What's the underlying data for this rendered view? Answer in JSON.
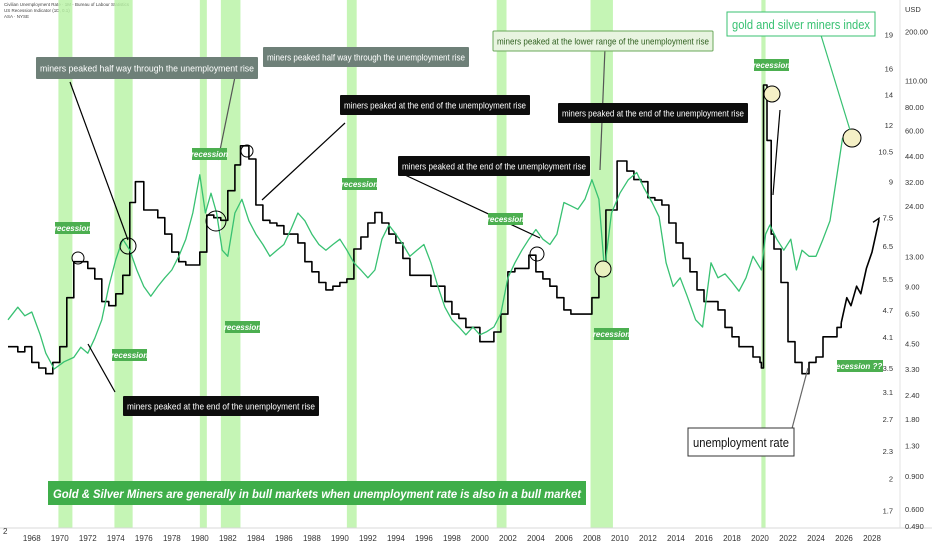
{
  "header": {
    "line1": "Civilian Unemployment Rate · 1M · Bureau of Labour Statistics",
    "line2": "US Recession Indicator (1D, 0.1)",
    "line3": "ASA · NYSE"
  },
  "chart_data": {
    "type": "line",
    "title": "",
    "xlabel": "",
    "ylabel": "",
    "x_ticks": [
      "1968",
      "1970",
      "1972",
      "1974",
      "1976",
      "1978",
      "1980",
      "1982",
      "1984",
      "1986",
      "1988",
      "1990",
      "1992",
      "1994",
      "1996",
      "1998",
      "2000",
      "2002",
      "2004",
      "2006",
      "2008",
      "2010",
      "2012",
      "2014",
      "2016",
      "2018",
      "2020",
      "2022",
      "2024",
      "2026",
      "2028"
    ],
    "xlim": [
      1966.3,
      2029.5
    ],
    "left_axis_label": "2",
    "right_axis": {
      "unemployment_ticks": [
        "19",
        "16",
        "14",
        "12",
        "10.5",
        "9",
        "7.5",
        "6.5",
        "5.5",
        "4.7",
        "4.1",
        "3.5",
        "3.1",
        "2.7",
        "2.3",
        "2",
        "1.7"
      ],
      "miners_ticks": [
        "USD",
        "200.00",
        "110.00",
        "80.00",
        "60.00",
        "44.00",
        "32.00",
        "24.00",
        "13.00",
        "9.00",
        "6.50",
        "4.50",
        "3.30",
        "2.40",
        "1.80",
        "1.30",
        "0.900",
        "0.600",
        "0.490"
      ]
    },
    "recessions": [
      [
        1969.9,
        1970.9
      ],
      [
        1973.9,
        1975.2
      ],
      [
        1980.0,
        1980.5
      ],
      [
        1981.5,
        1982.9
      ],
      [
        1990.5,
        1991.2
      ],
      [
        2001.2,
        2001.9
      ],
      [
        2007.9,
        2009.5
      ],
      [
        2020.1,
        2020.4
      ]
    ],
    "series": [
      {
        "name": "unemployment rate",
        "color": "#000000",
        "points": [
          [
            1966.3,
            3.9
          ],
          [
            1967.0,
            3.8
          ],
          [
            1967.5,
            3.9
          ],
          [
            1968.0,
            3.6
          ],
          [
            1968.5,
            3.5
          ],
          [
            1969.0,
            3.4
          ],
          [
            1969.5,
            3.6
          ],
          [
            1970.0,
            3.9
          ],
          [
            1970.5,
            5.0
          ],
          [
            1971.0,
            6.0
          ],
          [
            1971.5,
            6.0
          ],
          [
            1972.0,
            5.8
          ],
          [
            1972.5,
            5.5
          ],
          [
            1973.0,
            4.9
          ],
          [
            1973.5,
            4.8
          ],
          [
            1974.0,
            5.1
          ],
          [
            1974.5,
            5.6
          ],
          [
            1975.0,
            8.1
          ],
          [
            1975.4,
            9.0
          ],
          [
            1976.0,
            7.8
          ],
          [
            1976.5,
            7.8
          ],
          [
            1977.0,
            7.5
          ],
          [
            1977.5,
            6.9
          ],
          [
            1978.0,
            6.3
          ],
          [
            1978.5,
            6.0
          ],
          [
            1979.0,
            5.9
          ],
          [
            1979.5,
            5.9
          ],
          [
            1980.0,
            6.3
          ],
          [
            1980.5,
            7.6
          ],
          [
            1981.0,
            7.5
          ],
          [
            1981.5,
            7.4
          ],
          [
            1982.0,
            8.6
          ],
          [
            1982.5,
            9.8
          ],
          [
            1982.9,
            10.8
          ],
          [
            1983.5,
            10.1
          ],
          [
            1984.0,
            8.0
          ],
          [
            1984.5,
            7.4
          ],
          [
            1985.0,
            7.3
          ],
          [
            1985.5,
            7.2
          ],
          [
            1986.0,
            6.9
          ],
          [
            1986.5,
            6.9
          ],
          [
            1987.0,
            6.6
          ],
          [
            1987.5,
            6.0
          ],
          [
            1988.0,
            5.7
          ],
          [
            1988.5,
            5.4
          ],
          [
            1989.0,
            5.2
          ],
          [
            1989.5,
            5.3
          ],
          [
            1990.0,
            5.4
          ],
          [
            1990.5,
            5.5
          ],
          [
            1991.0,
            6.4
          ],
          [
            1991.5,
            6.8
          ],
          [
            1992.0,
            7.3
          ],
          [
            1992.5,
            7.7
          ],
          [
            1993.0,
            7.3
          ],
          [
            1993.5,
            6.9
          ],
          [
            1994.0,
            6.6
          ],
          [
            1994.5,
            6.1
          ],
          [
            1995.0,
            5.6
          ],
          [
            1995.5,
            5.6
          ],
          [
            1996.0,
            5.6
          ],
          [
            1996.5,
            5.3
          ],
          [
            1997.0,
            5.3
          ],
          [
            1997.5,
            4.9
          ],
          [
            1998.0,
            4.6
          ],
          [
            1998.5,
            4.5
          ],
          [
            1999.0,
            4.3
          ],
          [
            1999.5,
            4.3
          ],
          [
            2000.0,
            4.0
          ],
          [
            2000.5,
            4.0
          ],
          [
            2001.0,
            4.2
          ],
          [
            2001.5,
            4.6
          ],
          [
            2002.0,
            5.7
          ],
          [
            2002.5,
            5.8
          ],
          [
            2003.0,
            5.8
          ],
          [
            2003.5,
            6.2
          ],
          [
            2004.0,
            5.7
          ],
          [
            2004.5,
            5.5
          ],
          [
            2005.0,
            5.3
          ],
          [
            2005.5,
            5.0
          ],
          [
            2006.0,
            4.7
          ],
          [
            2006.5,
            4.6
          ],
          [
            2007.0,
            4.6
          ],
          [
            2007.5,
            4.6
          ],
          [
            2008.0,
            5.0
          ],
          [
            2008.5,
            5.8
          ],
          [
            2009.0,
            7.8
          ],
          [
            2009.8,
            10.0
          ],
          [
            2010.5,
            9.5
          ],
          [
            2011.0,
            9.1
          ],
          [
            2011.5,
            9.0
          ],
          [
            2012.0,
            8.3
          ],
          [
            2012.5,
            8.2
          ],
          [
            2013.0,
            8.0
          ],
          [
            2013.5,
            7.3
          ],
          [
            2014.0,
            6.6
          ],
          [
            2014.5,
            6.1
          ],
          [
            2015.0,
            5.7
          ],
          [
            2015.5,
            5.2
          ],
          [
            2016.0,
            4.9
          ],
          [
            2016.5,
            4.9
          ],
          [
            2017.0,
            4.7
          ],
          [
            2017.5,
            4.3
          ],
          [
            2018.0,
            4.1
          ],
          [
            2018.5,
            3.9
          ],
          [
            2019.0,
            3.9
          ],
          [
            2019.5,
            3.7
          ],
          [
            2020.0,
            3.6
          ],
          [
            2020.1,
            3.5
          ],
          [
            2020.25,
            14.7
          ],
          [
            2020.5,
            11.1
          ],
          [
            2020.8,
            6.9
          ],
          [
            2021.0,
            6.4
          ],
          [
            2021.5,
            5.4
          ],
          [
            2022.0,
            4.0
          ],
          [
            2022.5,
            3.6
          ],
          [
            2023.0,
            3.4
          ],
          [
            2023.5,
            3.6
          ],
          [
            2024.0,
            3.7
          ],
          [
            2024.5,
            4.1
          ],
          [
            2025.0,
            4.1
          ],
          [
            2025.5,
            4.3
          ],
          [
            2025.8,
            4.4
          ]
        ]
      },
      {
        "name": "gold and silver miners index",
        "color": "#38c172",
        "points": [
          [
            1966.3,
            6.0
          ],
          [
            1967.0,
            7.0
          ],
          [
            1967.5,
            6.3
          ],
          [
            1968.0,
            6.6
          ],
          [
            1968.6,
            5.0
          ],
          [
            1969.0,
            4.0
          ],
          [
            1969.6,
            3.3
          ],
          [
            1970.3,
            3.6
          ],
          [
            1971.0,
            3.8
          ],
          [
            1971.5,
            4.3
          ],
          [
            1972.0,
            4.0
          ],
          [
            1972.5,
            4.8
          ],
          [
            1973.0,
            6.0
          ],
          [
            1973.5,
            9.0
          ],
          [
            1974.0,
            12.5
          ],
          [
            1974.5,
            16.0
          ],
          [
            1975.0,
            14.0
          ],
          [
            1975.5,
            11.0
          ],
          [
            1976.0,
            9.0
          ],
          [
            1976.5,
            8.0
          ],
          [
            1977.0,
            9.0
          ],
          [
            1977.5,
            10.0
          ],
          [
            1978.0,
            11.0
          ],
          [
            1978.5,
            13.0
          ],
          [
            1979.0,
            16.0
          ],
          [
            1979.5,
            22.0
          ],
          [
            1980.0,
            35.0
          ],
          [
            1980.4,
            22.0
          ],
          [
            1980.8,
            28.0
          ],
          [
            1981.2,
            22.0
          ],
          [
            1981.6,
            14.0
          ],
          [
            1982.0,
            13.0
          ],
          [
            1982.5,
            22.0
          ],
          [
            1983.0,
            26.0
          ],
          [
            1983.5,
            20.0
          ],
          [
            1984.0,
            17.0
          ],
          [
            1984.5,
            15.0
          ],
          [
            1985.0,
            13.0
          ],
          [
            1985.5,
            14.0
          ],
          [
            1986.0,
            15.0
          ],
          [
            1986.5,
            18.0
          ],
          [
            1987.0,
            22.0
          ],
          [
            1987.5,
            20.0
          ],
          [
            1988.0,
            17.0
          ],
          [
            1988.5,
            15.0
          ],
          [
            1989.0,
            14.0
          ],
          [
            1989.5,
            15.0
          ],
          [
            1990.0,
            16.0
          ],
          [
            1990.5,
            14.0
          ],
          [
            1991.0,
            12.0
          ],
          [
            1991.5,
            11.0
          ],
          [
            1992.0,
            10.0
          ],
          [
            1992.5,
            11.0
          ],
          [
            1993.0,
            16.0
          ],
          [
            1993.5,
            19.0
          ],
          [
            1994.0,
            17.0
          ],
          [
            1994.5,
            15.0
          ],
          [
            1995.0,
            13.0
          ],
          [
            1995.5,
            14.0
          ],
          [
            1996.0,
            15.0
          ],
          [
            1996.5,
            12.0
          ],
          [
            1997.0,
            9.0
          ],
          [
            1997.5,
            7.0
          ],
          [
            1998.0,
            6.0
          ],
          [
            1998.5,
            5.5
          ],
          [
            1999.0,
            5.0
          ],
          [
            1999.5,
            5.5
          ],
          [
            2000.0,
            5.0
          ],
          [
            2000.5,
            5.2
          ],
          [
            2001.0,
            5.5
          ],
          [
            2001.5,
            6.5
          ],
          [
            2002.0,
            10.0
          ],
          [
            2002.5,
            12.0
          ],
          [
            2003.0,
            14.0
          ],
          [
            2003.5,
            16.0
          ],
          [
            2004.0,
            18.0
          ],
          [
            2004.5,
            16.0
          ],
          [
            2005.0,
            15.0
          ],
          [
            2005.5,
            17.0
          ],
          [
            2006.0,
            25.0
          ],
          [
            2006.5,
            24.0
          ],
          [
            2007.0,
            23.0
          ],
          [
            2007.5,
            26.0
          ],
          [
            2008.0,
            33.0
          ],
          [
            2008.5,
            26.0
          ],
          [
            2008.9,
            11.0
          ],
          [
            2009.4,
            22.0
          ],
          [
            2010.0,
            28.0
          ],
          [
            2010.6,
            33.0
          ],
          [
            2011.2,
            36.0
          ],
          [
            2011.7,
            30.0
          ],
          [
            2012.3,
            25.0
          ],
          [
            2012.8,
            21.0
          ],
          [
            2013.3,
            12.0
          ],
          [
            2013.8,
            9.0
          ],
          [
            2014.3,
            10.0
          ],
          [
            2014.8,
            8.0
          ],
          [
            2015.4,
            6.0
          ],
          [
            2015.9,
            5.5
          ],
          [
            2016.5,
            12.0
          ],
          [
            2017.0,
            10.0
          ],
          [
            2017.5,
            10.5
          ],
          [
            2018.0,
            9.5
          ],
          [
            2018.5,
            8.5
          ],
          [
            2019.0,
            10.0
          ],
          [
            2019.5,
            13.0
          ],
          [
            2020.1,
            11.0
          ],
          [
            2020.4,
            17.0
          ],
          [
            2020.7,
            19.0
          ],
          [
            2021.2,
            16.0
          ],
          [
            2021.7,
            14.0
          ],
          [
            2022.2,
            16.0
          ],
          [
            2022.6,
            11.0
          ],
          [
            2023.0,
            14.0
          ],
          [
            2023.5,
            13.0
          ],
          [
            2024.0,
            13.0
          ],
          [
            2024.5,
            16.0
          ],
          [
            2025.0,
            20.0
          ],
          [
            2025.5,
            35.0
          ],
          [
            2025.9,
            55.0
          ]
        ]
      },
      {
        "name": "projection",
        "color": "#000000",
        "points": [
          [
            2025.8,
            4.4
          ],
          [
            2026.2,
            5.0
          ],
          [
            2026.5,
            4.8
          ],
          [
            2026.9,
            5.3
          ],
          [
            2027.2,
            5.1
          ],
          [
            2027.6,
            5.8
          ],
          [
            2028.0,
            6.3
          ],
          [
            2028.5,
            7.4
          ]
        ]
      }
    ],
    "annotations": {
      "recession_labels": [
        "recession",
        "recession",
        "recession",
        "recession",
        "recession",
        "recession",
        "recession",
        "recession",
        "recession ???"
      ],
      "notes": [
        "miners peaked half way through the unemployment rise",
        "miners peaked half way through the unemployment rise",
        "miners peaked at the end of the unemployment rise",
        "miners peaked at the end of the unemployment rise",
        "miners peaked at the lower range of the unemployment rise",
        "miners peaked at the end of the unemployment rise",
        "miners peaked at the end of the unemployment rise"
      ],
      "series_labels": [
        "gold and silver miners index",
        "unemployment rate"
      ],
      "banner": "Gold & Silver Miners are generally in bull markets when unemployment rate is also in a bull market"
    }
  }
}
